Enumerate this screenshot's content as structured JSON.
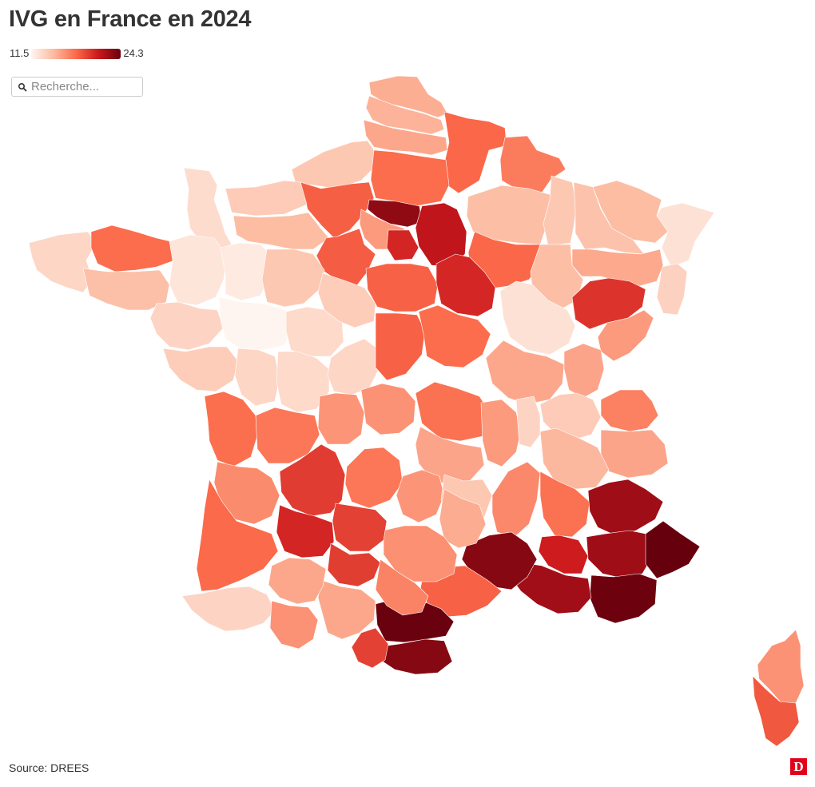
{
  "title": "IVG en France en 2024",
  "legend": {
    "min": "11.5",
    "max": "24.3"
  },
  "search": {
    "placeholder": "Recherche..."
  },
  "source": "Source: DREES",
  "colors": {
    "scale": [
      "#fff5f0",
      "#fcbba1",
      "#fb6a4a",
      "#cb181d",
      "#67000d"
    ],
    "background": "#ffffff",
    "border": "#ffffff",
    "logo": "#e3001b"
  },
  "icons": {
    "search": "search-icon",
    "logo": "logo-icon"
  },
  "logo_text": "D",
  "map": {
    "type": "choropleth",
    "measure": "IVG",
    "scale_min": 11.5,
    "scale_max": 24.3,
    "regions": [
      {
        "name": "Nord",
        "value": 15.2
      },
      {
        "name": "Pas-de-Calais",
        "value": 15.0
      },
      {
        "name": "Somme",
        "value": 15.5
      },
      {
        "name": "Aisne",
        "value": 18.0
      },
      {
        "name": "Ardennes",
        "value": 17.2
      },
      {
        "name": "Seine-Maritime",
        "value": 14.0
      },
      {
        "name": "Oise",
        "value": 17.8
      },
      {
        "name": "Eure",
        "value": 18.3
      },
      {
        "name": "Val-d'Oise",
        "value": 23.0
      },
      {
        "name": "Yvelines",
        "value": 16.0
      },
      {
        "name": "Seine-et-Marne",
        "value": 21.5
      },
      {
        "name": "Essonne",
        "value": 20.6
      },
      {
        "name": "Marne",
        "value": 14.5
      },
      {
        "name": "Meuse",
        "value": 14.0
      },
      {
        "name": "Moselle",
        "value": 14.6
      },
      {
        "name": "Bas-Rhin",
        "value": 12.6
      },
      {
        "name": "Haut-Rhin",
        "value": 13.5
      },
      {
        "name": "Meurthe-et-Moselle",
        "value": 14.3
      },
      {
        "name": "Vosges",
        "value": 15.4
      },
      {
        "name": "Aube",
        "value": 18.0
      },
      {
        "name": "Haute-Marne",
        "value": 14.5
      },
      {
        "name": "Manche",
        "value": 12.9
      },
      {
        "name": "Calvados",
        "value": 13.8
      },
      {
        "name": "Orne",
        "value": 14.6
      },
      {
        "name": "Eure-et-Loir",
        "value": 18.4
      },
      {
        "name": "Finistère",
        "value": 13.2
      },
      {
        "name": "Côtes-d'Armor",
        "value": 17.8
      },
      {
        "name": "Morbihan",
        "value": 14.4
      },
      {
        "name": "Ille-et-Vilaine",
        "value": 12.4
      },
      {
        "name": "Mayenne",
        "value": 12.1
      },
      {
        "name": "Sarthe",
        "value": 14.0
      },
      {
        "name": "Loire-Atlantique",
        "value": 13.3
      },
      {
        "name": "Maine-et-Loire",
        "value": 11.5
      },
      {
        "name": "Indre-et-Loire",
        "value": 13.0
      },
      {
        "name": "Loir-et-Cher",
        "value": 13.7
      },
      {
        "name": "Loiret",
        "value": 18.2
      },
      {
        "name": "Yonne",
        "value": 20.5
      },
      {
        "name": "Côte-d'Or",
        "value": 12.6
      },
      {
        "name": "Haute-Saône",
        "value": 20.0
      },
      {
        "name": "Doubs",
        "value": 16.0
      },
      {
        "name": "Vendée",
        "value": 13.7
      },
      {
        "name": "Deux-Sèvres",
        "value": 13.2
      },
      {
        "name": "Vienne",
        "value": 13.0
      },
      {
        "name": "Indre",
        "value": 13.2
      },
      {
        "name": "Cher",
        "value": 18.2
      },
      {
        "name": "Nièvre",
        "value": 17.8
      },
      {
        "name": "Saône-et-Loire",
        "value": 15.5
      },
      {
        "name": "Jura",
        "value": 15.6
      },
      {
        "name": "Ain",
        "value": 13.8
      },
      {
        "name": "Haute-Savoie",
        "value": 17.0
      },
      {
        "name": "Savoie",
        "value": 15.6
      },
      {
        "name": "Charente-Maritime",
        "value": 17.7
      },
      {
        "name": "Charente",
        "value": 17.4
      },
      {
        "name": "Haute-Vienne",
        "value": 16.2
      },
      {
        "name": "Creuse",
        "value": 16.3
      },
      {
        "name": "Allier",
        "value": 17.6
      },
      {
        "name": "Loire",
        "value": 16.0
      },
      {
        "name": "Rhône",
        "value": 13.3
      },
      {
        "name": "Isère",
        "value": 14.8
      },
      {
        "name": "Puy-de-Dôme",
        "value": 15.6
      },
      {
        "name": "Gironde",
        "value": 16.6
      },
      {
        "name": "Dordogne",
        "value": 19.7
      },
      {
        "name": "Corrèze",
        "value": 17.4
      },
      {
        "name": "Cantal",
        "value": 16.2
      },
      {
        "name": "Haute-Loire",
        "value": 14.0
      },
      {
        "name": "Ardèche",
        "value": 16.7
      },
      {
        "name": "Drôme",
        "value": 17.6
      },
      {
        "name": "Hautes-Alpes",
        "value": 22.5
      },
      {
        "name": "Alpes-de-Haute-Provence",
        "value": 22.5
      },
      {
        "name": "Alpes-Maritimes",
        "value": 24.3
      },
      {
        "name": "Var",
        "value": 24.1
      },
      {
        "name": "Vaucluse",
        "value": 21.0
      },
      {
        "name": "Bouches-du-Rhône",
        "value": 22.4
      },
      {
        "name": "Gard",
        "value": 23.3
      },
      {
        "name": "Hérault",
        "value": 18.2
      },
      {
        "name": "Aude",
        "value": 24.2
      },
      {
        "name": "Pyrénées-Orientales",
        "value": 23.3
      },
      {
        "name": "Lozère",
        "value": 15.3
      },
      {
        "name": "Aveyron",
        "value": 16.4
      },
      {
        "name": "Lot",
        "value": 19.5
      },
      {
        "name": "Lot-et-Garonne",
        "value": 20.6
      },
      {
        "name": "Tarn-et-Garonne",
        "value": 19.6
      },
      {
        "name": "Tarn",
        "value": 16.9
      },
      {
        "name": "Haute-Garonne",
        "value": 15.5
      },
      {
        "name": "Ariège",
        "value": 19.5
      },
      {
        "name": "Landes",
        "value": 17.9
      },
      {
        "name": "Gers",
        "value": 15.5
      },
      {
        "name": "Pyrénées-Atlantiques",
        "value": 13.3
      },
      {
        "name": "Hautes-Pyrénées",
        "value": 16.3
      },
      {
        "name": "Haute-Corse",
        "value": 16.3
      },
      {
        "name": "Corse-du-Sud",
        "value": 18.6
      }
    ]
  }
}
